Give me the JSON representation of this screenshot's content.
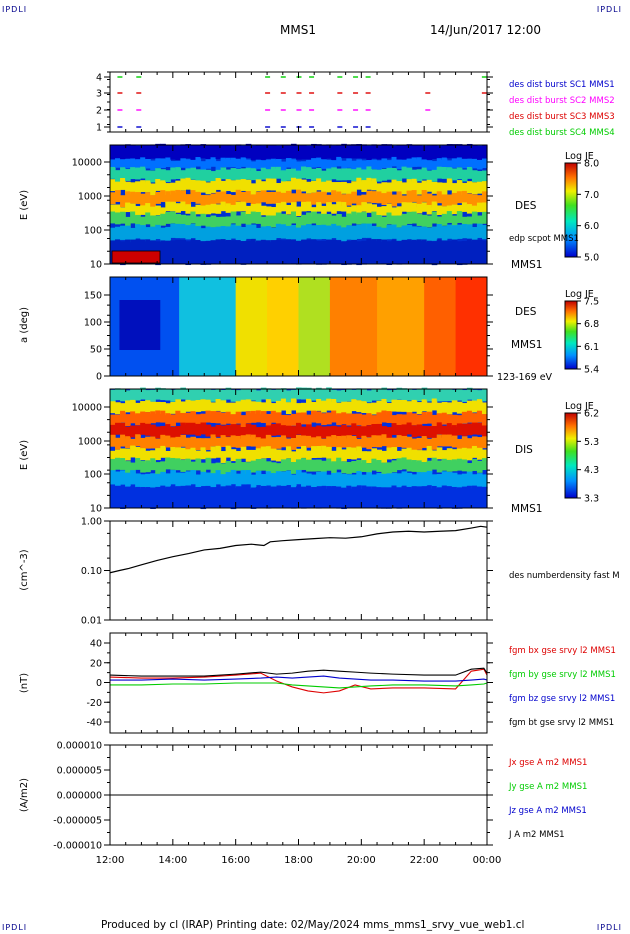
{
  "corner_label": "IPDLI",
  "header": {
    "title": "MMS1",
    "timestamp": "14/Jun/2017 12:00"
  },
  "footer": {
    "text": "Produced by cl (IRAP)   Printing date: 02/May/2024   mms_mms1_srvy_vue_web1.cl"
  },
  "colors": {
    "blue": "#0000cc",
    "magenta": "#ff00ff",
    "red": "#dd0000",
    "green": "#00cc00",
    "black": "#000000"
  },
  "time_axis": {
    "ticks": [
      "12:00",
      "14:00",
      "16:00",
      "18:00",
      "20:00",
      "22:00",
      "00:00"
    ]
  },
  "panels": {
    "burst": {
      "y_ticks": [
        "1",
        "2",
        "3",
        "4"
      ],
      "legend": [
        {
          "label": "des dist burst SC1 MMS1",
          "color": "blue"
        },
        {
          "label": "des dist burst SC2 MMS2",
          "color": "magenta"
        },
        {
          "label": "des dist burst SC3 MMS3",
          "color": "red"
        },
        {
          "label": "des dist burst SC4 MMS4",
          "color": "green"
        }
      ]
    },
    "des_energy": {
      "ylabel": "E (eV)",
      "y_ticks": [
        "10000",
        "1000",
        "100",
        "10"
      ],
      "label": "DES",
      "overlay_label": "edp scpot MMS1",
      "sc_label": "MMS1",
      "colorbar": {
        "title": "Log JE",
        "ticks": [
          "8.0",
          "7.0",
          "6.0",
          "5.0"
        ]
      }
    },
    "des_pitch": {
      "ylabel": "a (deg)",
      "y_ticks": [
        "150",
        "100",
        "50",
        "0"
      ],
      "label": "DES",
      "sc_label": "MMS1",
      "energy_range": "123-169 eV",
      "colorbar": {
        "title": "Log JE",
        "ticks": [
          "7.5",
          "6.8",
          "6.1",
          "5.4"
        ]
      }
    },
    "dis_energy": {
      "ylabel": "E (eV)",
      "y_ticks": [
        "10000",
        "1000",
        "100",
        "10"
      ],
      "label": "DIS",
      "sc_label": "MMS1",
      "colorbar": {
        "title": "Log JE",
        "ticks": [
          "6.2",
          "5.3",
          "4.3",
          "3.3"
        ]
      }
    },
    "density": {
      "ylabel": "(cm^-3)",
      "y_ticks": [
        "1.00",
        "0.10",
        "0.01"
      ],
      "legend": "des numberdensity fast M"
    },
    "magnetic": {
      "ylabel": "(nT)",
      "y_ticks": [
        "40",
        "20",
        "0",
        "-20",
        "-40"
      ],
      "legend": [
        {
          "label": "fgm bx gse srvy l2 MMS1",
          "color": "red"
        },
        {
          "label": "fgm by gse srvy l2 MMS1",
          "color": "green"
        },
        {
          "label": "fgm bz gse srvy l2 MMS1",
          "color": "blue"
        },
        {
          "label": "fgm bt gse srvy l2 MMS1",
          "color": "black"
        }
      ]
    },
    "current": {
      "ylabel": "(A/m2)",
      "y_ticks": [
        "0.000010",
        "0.000005",
        "0.000000",
        "-0.000005",
        "-0.000010"
      ],
      "legend": [
        {
          "label": "Jx gse A m2 MMS1",
          "color": "red"
        },
        {
          "label": "Jy gse A m2 MMS1",
          "color": "green"
        },
        {
          "label": "Jz gse A m2 MMS1",
          "color": "blue"
        },
        {
          "label": "J A m2 MMS1",
          "color": "black"
        }
      ]
    }
  },
  "chart_data": [
    {
      "type": "scatter",
      "xlabel": "",
      "ylabel": "",
      "series": [
        {
          "name": "des dist burst SC1 MMS1",
          "y": 1,
          "x_hours": [
            12.3,
            12.9,
            17.0,
            17.5,
            18.0,
            18.4,
            19.3,
            19.8,
            20.2
          ]
        },
        {
          "name": "des dist burst SC2 MMS2",
          "y": 2,
          "x_hours": [
            12.3,
            12.9,
            17.0,
            17.5,
            18.0,
            18.4,
            19.3,
            19.8,
            20.2,
            22.1
          ]
        },
        {
          "name": "des dist burst SC3 MMS3",
          "y": 3,
          "x_hours": [
            12.3,
            12.9,
            17.0,
            17.5,
            18.0,
            18.4,
            19.3,
            19.8,
            20.2,
            22.1,
            23.9
          ]
        },
        {
          "name": "des dist burst SC4 MMS4",
          "y": 4,
          "x_hours": [
            12.3,
            12.9,
            17.0,
            17.5,
            18.0,
            18.4,
            19.3,
            19.8,
            20.2,
            23.9
          ]
        }
      ]
    },
    {
      "type": "heatmap",
      "ylabel": "E (eV)",
      "yscale": "log",
      "ylim": [
        10,
        30000
      ],
      "zlabel": "Log JE",
      "zlim": [
        5.0,
        8.2
      ]
    },
    {
      "type": "heatmap",
      "ylabel": "a (deg)",
      "ylim": [
        0,
        180
      ],
      "zlabel": "Log JE",
      "zlim": [
        5.4,
        7.6
      ]
    },
    {
      "type": "heatmap",
      "ylabel": "E (eV)",
      "yscale": "log",
      "ylim": [
        10,
        30000
      ],
      "zlabel": "Log JE",
      "zlim": [
        3.3,
        6.3
      ]
    },
    {
      "type": "line",
      "ylabel": "(cm^-3)",
      "yscale": "log",
      "ylim": [
        0.01,
        1.0
      ],
      "series": [
        {
          "name": "des numberdensity fast M",
          "x_hours": [
            12.0,
            12.3,
            12.6,
            13.0,
            13.5,
            14.0,
            14.5,
            15.0,
            15.5,
            16.0,
            16.5,
            16.9,
            17.1,
            17.5,
            18.0,
            18.5,
            19.0,
            19.5,
            20.0,
            20.5,
            21.0,
            21.5,
            22.0,
            22.5,
            23.0,
            23.5,
            23.8,
            24.0
          ],
          "values": [
            0.09,
            0.1,
            0.11,
            0.13,
            0.16,
            0.19,
            0.22,
            0.26,
            0.28,
            0.32,
            0.34,
            0.32,
            0.38,
            0.4,
            0.42,
            0.44,
            0.46,
            0.45,
            0.48,
            0.55,
            0.6,
            0.62,
            0.6,
            0.62,
            0.64,
            0.72,
            0.78,
            0.75
          ]
        }
      ]
    },
    {
      "type": "line",
      "ylabel": "(nT)",
      "ylim": [
        -50,
        50
      ],
      "series": [
        {
          "name": "fgm bx gse srvy l2 MMS1",
          "x_hours": [
            12.0,
            13.0,
            14.0,
            15.0,
            16.0,
            16.8,
            17.3,
            17.8,
            18.3,
            18.8,
            19.3,
            19.8,
            20.3,
            21.0,
            22.0,
            23.0,
            23.5,
            23.9,
            24.0
          ],
          "values": [
            6,
            5,
            5,
            6,
            8,
            10,
            2,
            -4,
            -8,
            -10,
            -8,
            -2,
            -6,
            -5,
            -5,
            -6,
            12,
            14,
            8
          ]
        },
        {
          "name": "fgm by gse srvy l2 MMS1",
          "x_hours": [
            12.0,
            13.0,
            14.0,
            15.0,
            16.0,
            16.8,
            17.3,
            17.8,
            18.3,
            18.8,
            19.3,
            19.8,
            20.3,
            21.0,
            22.0,
            23.0,
            23.5,
            23.9,
            24.0
          ],
          "values": [
            -2,
            -2,
            -1,
            -1,
            0,
            0,
            0,
            -2,
            -3,
            -4,
            -5,
            -4,
            -3,
            -2,
            -2,
            -3,
            -2,
            -1,
            0
          ]
        },
        {
          "name": "fgm bz gse srvy l2 MMS1",
          "x_hours": [
            12.0,
            13.0,
            14.0,
            15.0,
            16.0,
            16.8,
            17.3,
            17.8,
            18.3,
            18.8,
            19.3,
            19.8,
            20.3,
            21.0,
            22.0,
            23.0,
            23.5,
            23.9,
            24.0
          ],
          "values": [
            3,
            3,
            4,
            3,
            4,
            5,
            6,
            5,
            6,
            7,
            5,
            4,
            3,
            3,
            2,
            2,
            3,
            4,
            3
          ]
        },
        {
          "name": "fgm bt gse srvy l2 MMS1",
          "x_hours": [
            12.0,
            13.0,
            14.0,
            15.0,
            16.0,
            16.8,
            17.3,
            17.8,
            18.3,
            18.8,
            19.3,
            19.8,
            20.3,
            21.0,
            22.0,
            23.0,
            23.5,
            23.9,
            24.0
          ],
          "values": [
            8,
            7,
            7,
            7,
            9,
            11,
            9,
            10,
            12,
            13,
            12,
            11,
            10,
            9,
            8,
            8,
            14,
            15,
            10
          ]
        }
      ]
    },
    {
      "type": "line",
      "ylabel": "(A/m2)",
      "ylim": [
        -1e-05,
        1e-05
      ],
      "series": [
        {
          "name": "Jx gse A m2 MMS1",
          "x_hours": [
            12.0,
            24.0
          ],
          "values": [
            0.0,
            0.0
          ]
        },
        {
          "name": "Jy gse A m2 MMS1",
          "x_hours": [
            12.0,
            24.0
          ],
          "values": [
            0.0,
            0.0
          ]
        },
        {
          "name": "Jz gse A m2 MMS1",
          "x_hours": [
            12.0,
            24.0
          ],
          "values": [
            0.0,
            0.0
          ]
        },
        {
          "name": "J A m2 MMS1",
          "x_hours": [
            12.0,
            24.0
          ],
          "values": [
            0.0,
            0.0
          ]
        }
      ]
    }
  ]
}
